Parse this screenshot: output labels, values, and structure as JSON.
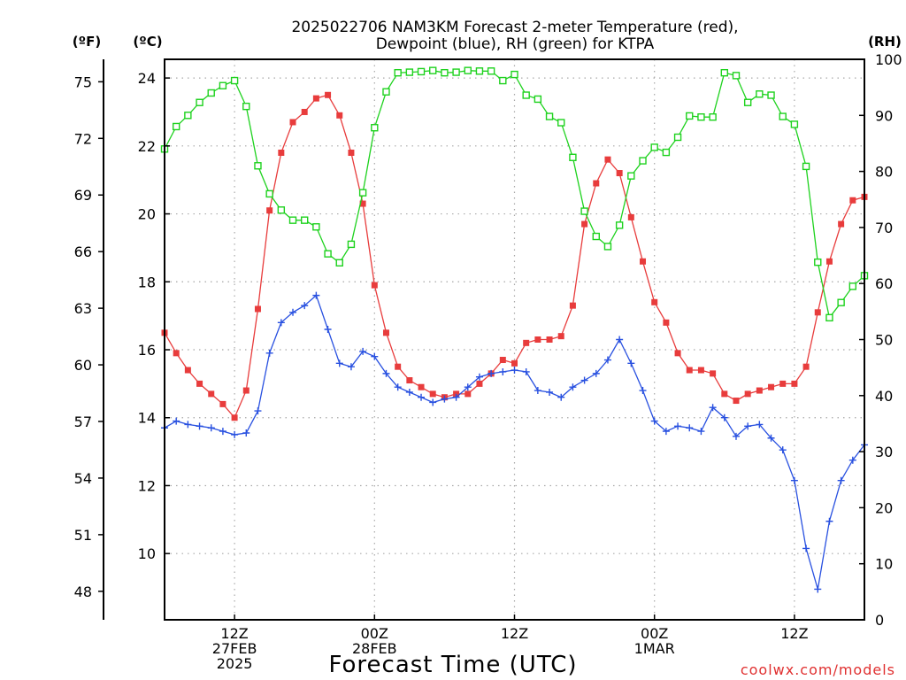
{
  "chart_data": {
    "type": "line",
    "title_line1": "2025022706 NAM3KM Forecast 2-meter Temperature (red),",
    "title_line2": "Dewpoint (blue), RH (green) for KTPA",
    "xlabel": "Forecast Time (UTC)",
    "credit": "coolwx.com/models",
    "units": {
      "fahrenheit": "(ºF)",
      "celsius": "(ºC)",
      "rh": "(RH)"
    },
    "x_ticks": [
      {
        "hour": 12,
        "lines": [
          "12Z",
          "27FEB",
          "2025"
        ]
      },
      {
        "hour": 24,
        "lines": [
          "00Z",
          "28FEB"
        ]
      },
      {
        "hour": 36,
        "lines": [
          "12Z"
        ]
      },
      {
        "hour": 48,
        "lines": [
          "00Z",
          "1MAR"
        ]
      },
      {
        "hour": 60,
        "lines": [
          "12Z"
        ]
      }
    ],
    "xlim": [
      6,
      66
    ],
    "ylim_celsius": [
      8.05,
      24.55
    ],
    "ylim_rh": [
      0,
      100
    ],
    "yticks_celsius": [
      10,
      12,
      14,
      16,
      18,
      20,
      22,
      24
    ],
    "yticks_fahrenheit": [
      48,
      51,
      54,
      57,
      60,
      63,
      66,
      69,
      72,
      75
    ],
    "yticks_rh": [
      0,
      10,
      20,
      30,
      40,
      50,
      60,
      70,
      80,
      90,
      100
    ],
    "colors": {
      "temperature": "#e83c3c",
      "dewpoint": "#2850e0",
      "rh": "#1ed21e"
    },
    "series": [
      {
        "name": "Temperature (red)",
        "axis": "celsius",
        "marker": "filled-square",
        "color": "#e83c3c",
        "x": [
          6,
          7,
          8,
          9,
          10,
          11,
          12,
          13,
          14,
          15,
          16,
          17,
          18,
          19,
          20,
          21,
          22,
          23,
          24,
          25,
          26,
          27,
          28,
          29,
          30,
          31,
          32,
          33,
          34,
          35,
          36,
          37,
          38,
          39,
          40,
          41,
          42,
          43,
          44,
          45,
          46,
          47,
          48,
          49,
          50,
          51,
          52,
          53,
          54,
          55,
          56,
          57,
          58,
          59,
          60,
          61,
          62,
          63,
          64,
          65,
          66
        ],
        "values": [
          16.5,
          15.9,
          15.4,
          15.0,
          14.7,
          14.4,
          14.0,
          14.8,
          17.2,
          20.1,
          21.8,
          22.7,
          23.0,
          23.4,
          23.5,
          22.9,
          21.8,
          20.3,
          17.9,
          16.5,
          15.5,
          15.1,
          14.9,
          14.7,
          14.6,
          14.7,
          14.7,
          15.0,
          15.3,
          15.7,
          15.6,
          16.2,
          16.3,
          16.3,
          16.4,
          17.3,
          19.7,
          20.9,
          21.6,
          21.2,
          19.9,
          18.6,
          17.4,
          16.8,
          15.9,
          15.4,
          15.4,
          15.3,
          14.7,
          14.5,
          14.7,
          14.8,
          14.9,
          15.0,
          15.0,
          15.5,
          17.1,
          18.6,
          19.7,
          20.4,
          20.5
        ]
      },
      {
        "name": "Dewpoint (blue)",
        "axis": "celsius",
        "marker": "plus",
        "color": "#2850e0",
        "x": [
          6,
          7,
          8,
          9,
          10,
          11,
          12,
          13,
          14,
          15,
          16,
          17,
          18,
          19,
          20,
          21,
          22,
          23,
          24,
          25,
          26,
          27,
          28,
          29,
          30,
          31,
          32,
          33,
          34,
          35,
          36,
          37,
          38,
          39,
          40,
          41,
          42,
          43,
          44,
          45,
          46,
          47,
          48,
          49,
          50,
          51,
          52,
          53,
          54,
          55,
          56,
          57,
          58,
          59,
          60,
          61,
          62,
          63,
          64,
          65,
          66
        ],
        "values": [
          13.7,
          13.9,
          13.8,
          13.75,
          13.7,
          13.6,
          13.5,
          13.55,
          14.2,
          15.9,
          16.8,
          17.1,
          17.3,
          17.6,
          16.6,
          15.6,
          15.5,
          15.95,
          15.8,
          15.3,
          14.9,
          14.75,
          14.6,
          14.45,
          14.55,
          14.6,
          14.9,
          15.2,
          15.3,
          15.35,
          15.4,
          15.35,
          14.8,
          14.75,
          14.6,
          14.9,
          15.1,
          15.3,
          15.7,
          16.3,
          15.6,
          14.8,
          13.9,
          13.6,
          13.75,
          13.7,
          13.6,
          14.3,
          14.0,
          13.45,
          13.75,
          13.8,
          13.4,
          13.05,
          12.15,
          10.15,
          8.95,
          10.95,
          12.15,
          12.75,
          13.2
        ]
      },
      {
        "name": "RH (green)",
        "axis": "rh",
        "marker": "open-square",
        "color": "#1ed21e",
        "x": [
          6,
          7,
          8,
          9,
          10,
          11,
          12,
          13,
          14,
          15,
          16,
          17,
          18,
          19,
          20,
          21,
          22,
          23,
          24,
          25,
          26,
          27,
          28,
          29,
          30,
          31,
          32,
          33,
          34,
          35,
          36,
          37,
          38,
          39,
          40,
          41,
          42,
          43,
          44,
          45,
          46,
          47,
          48,
          49,
          50,
          51,
          52,
          53,
          54,
          55,
          56,
          57,
          58,
          59,
          60,
          61,
          62,
          63,
          64,
          65,
          66
        ],
        "values": [
          84,
          88,
          90,
          92.3,
          94,
          95.3,
          96.2,
          91.6,
          81,
          76,
          73.1,
          71.3,
          71.3,
          70.1,
          65.3,
          63.7,
          67,
          76.2,
          87.8,
          94.2,
          97.6,
          97.7,
          97.8,
          98,
          97.6,
          97.7,
          98,
          97.9,
          97.9,
          96.2,
          97.3,
          93.6,
          92.9,
          89.8,
          88.7,
          82.5,
          72.9,
          68.4,
          66.6,
          70.4,
          79.2,
          81.9,
          84.3,
          83.4,
          86.1,
          89.9,
          89.7,
          89.7,
          97.6,
          97.1,
          92.3,
          93.8,
          93.6,
          89.8,
          88.4,
          80.9,
          63.8,
          53.9,
          56.6,
          59.5,
          61.4
        ]
      }
    ]
  }
}
